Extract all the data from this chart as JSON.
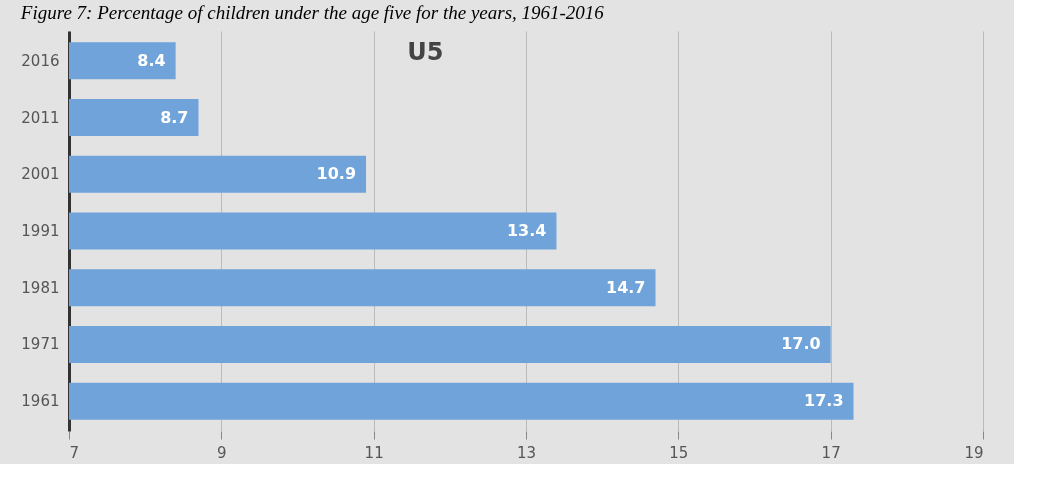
{
  "chart_data": {
    "type": "bar",
    "orientation": "horizontal",
    "title": "Figure 7: Percentage of children under the age five for the years, 1961-2016",
    "annotations": [
      "U5"
    ],
    "categories": [
      "2016",
      "2011",
      "2001",
      "1991",
      "1981",
      "1971",
      "1961"
    ],
    "values": [
      8.4,
      8.7,
      10.9,
      13.4,
      14.7,
      17.0,
      17.3
    ],
    "value_labels": [
      "8.4",
      "8.7",
      "10.9",
      "13.4",
      "14.7",
      "17.0",
      "17.3"
    ],
    "color": "#6fa3d9",
    "xlim": [
      7,
      19
    ],
    "xticks": [
      7,
      9,
      11,
      13,
      15,
      17,
      19
    ],
    "grid": "x"
  }
}
